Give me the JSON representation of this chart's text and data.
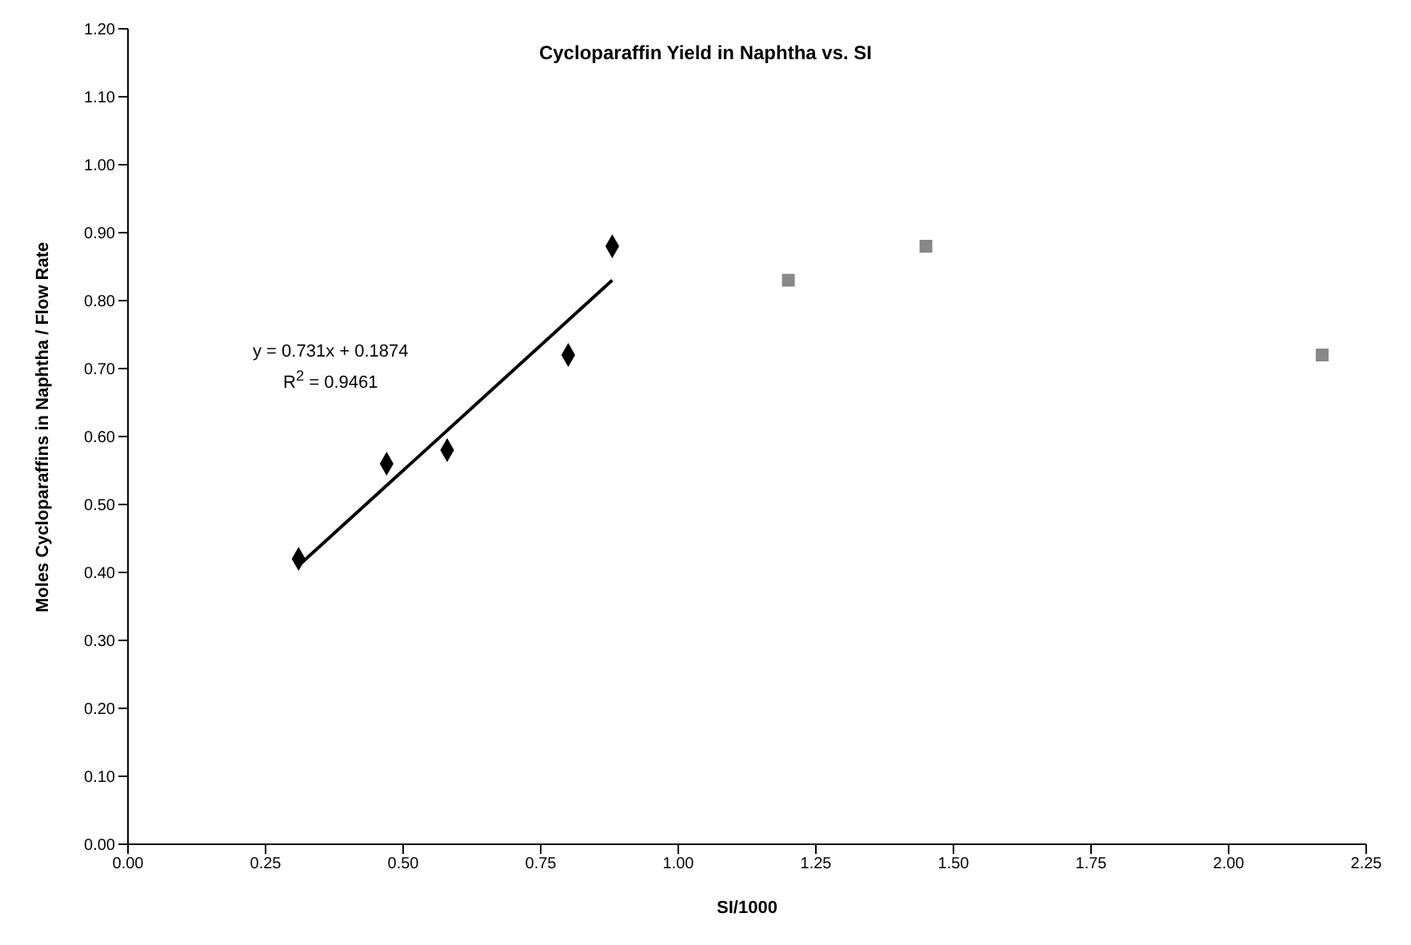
{
  "chart_data": {
    "type": "scatter",
    "title": "Cycloparaffin Yield in Naphtha vs. SI",
    "xlabel": "SI/1000",
    "ylabel": "Moles Cycloparaffins in Naphtha / Flow Rate",
    "series": [
      {
        "color": "#000000",
        "marker": "diamond",
        "x": [
          0.31,
          0.47,
          0.58,
          0.8,
          0.88
        ],
        "values": [
          0.42,
          0.56,
          0.58,
          0.72,
          0.88
        ]
      },
      {
        "color": "#888888",
        "marker": "square",
        "x": [
          1.2,
          1.45,
          2.17
        ],
        "values": [
          0.83,
          0.88,
          0.72
        ]
      },
      {
        "type": "line",
        "color": "#000000",
        "marker": "none",
        "x": [
          0.31,
          0.88
        ],
        "values": [
          0.41,
          0.83
        ]
      }
    ],
    "annotations": [
      "y = 0.731x + 0.1874",
      "R$^{2}$ = 0.9461"
    ],
    "xlim": [
      0,
      2.25
    ],
    "xticks": [
      {
        "value": 0,
        "label": "0.00"
      },
      {
        "value": 0.25,
        "label": "0.25"
      },
      {
        "value": 0.5,
        "label": "0.50"
      },
      {
        "value": 0.75,
        "label": "0.75"
      },
      {
        "value": 1,
        "label": "1.00"
      },
      {
        "value": 1.25,
        "label": "1.25"
      },
      {
        "value": 1.5,
        "label": "1.50"
      },
      {
        "value": 1.75,
        "label": "1.75"
      },
      {
        "value": 2,
        "label": "2.00"
      },
      {
        "value": 2.25,
        "label": "2.25"
      }
    ],
    "ylim": [
      0,
      1.2
    ],
    "yticks": [
      {
        "value": 0,
        "label": "0.00"
      },
      {
        "value": 0.1,
        "label": "0.10"
      },
      {
        "value": 0.2,
        "label": "0.20"
      },
      {
        "value": 0.3,
        "label": "0.30"
      },
      {
        "value": 0.4,
        "label": "0.40"
      },
      {
        "value": 0.5,
        "label": "0.50"
      },
      {
        "value": 0.6,
        "label": "0.60"
      },
      {
        "value": 0.7,
        "label": "0.70"
      },
      {
        "value": 0.8,
        "label": "0.80"
      },
      {
        "value": 0.9,
        "label": "0.90"
      },
      {
        "value": 1,
        "label": "1.00"
      },
      {
        "value": 1.1,
        "label": "1.10"
      },
      {
        "value": 1.2,
        "label": "1.20"
      }
    ],
    "grid": false,
    "legend": false
  }
}
